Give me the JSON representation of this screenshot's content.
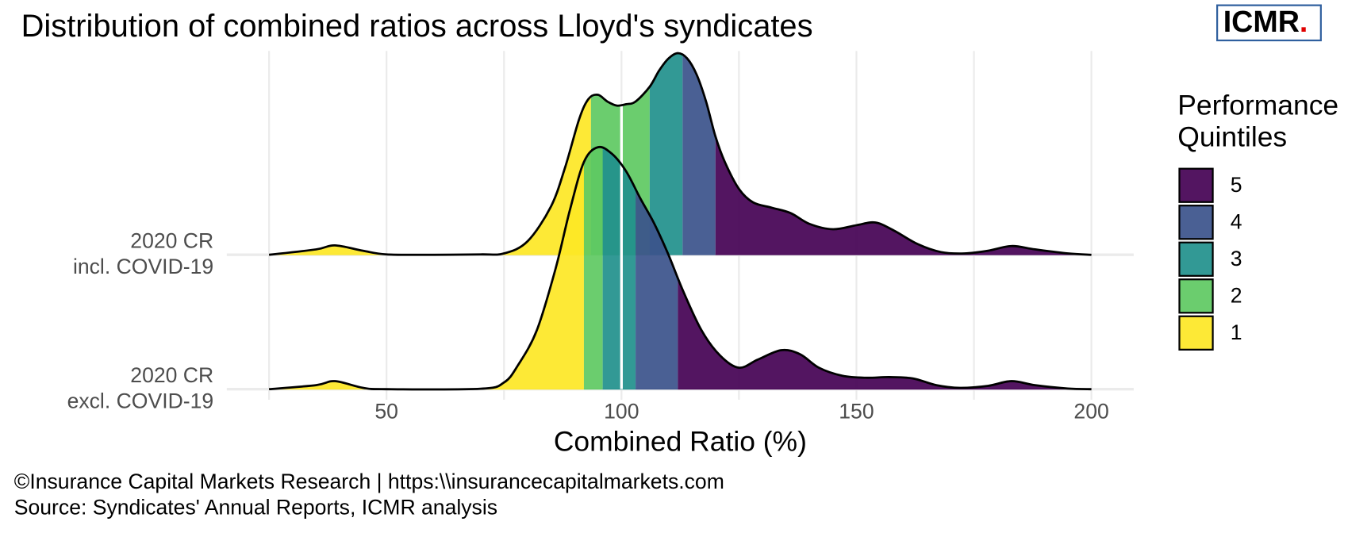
{
  "chart_data": {
    "type": "ridgeline",
    "title": "Distribution of combined ratios across Lloyd's syndicates",
    "x_label": "Combined Ratio (%)",
    "xlim": [
      16,
      209
    ],
    "xticks": [
      50,
      100,
      150,
      200
    ],
    "x_minor_ticks": [
      25,
      75,
      125,
      175
    ],
    "grid": true,
    "reference_line": 100,
    "legend": {
      "title": [
        "Performance",
        "Quintiles"
      ],
      "position": "right",
      "names": [
        "5",
        "4",
        "3",
        "2",
        "1"
      ]
    },
    "quintile_colors": [
      "#fde725",
      "#5ec962",
      "#21908c",
      "#3b528b",
      "#440154"
    ],
    "series": [
      {
        "label": [
          "2020 CR",
          "incl. COVID-19"
        ],
        "quintile_breaks": [
          93.5,
          106,
          113,
          120
        ],
        "x": [
          25,
          35,
          39,
          45,
          50,
          60,
          70,
          75,
          80,
          85,
          88,
          91,
          93,
          95,
          97,
          99,
          101,
          103,
          106,
          108,
          110,
          112,
          114,
          116,
          118,
          120,
          122,
          125,
          128,
          132,
          136,
          140,
          145,
          150,
          154,
          158,
          163,
          168,
          173,
          178,
          183,
          188,
          195,
          200
        ],
        "values": [
          0,
          0.04,
          0.07,
          0.03,
          0.003,
          0,
          0.003,
          0.01,
          0.1,
          0.36,
          0.65,
          1.01,
          1.16,
          1.19,
          1.14,
          1.11,
          1.12,
          1.14,
          1.25,
          1.37,
          1.46,
          1.5,
          1.46,
          1.34,
          1.14,
          0.88,
          0.69,
          0.49,
          0.39,
          0.35,
          0.31,
          0.23,
          0.19,
          0.22,
          0.24,
          0.18,
          0.08,
          0.02,
          0.01,
          0.03,
          0.065,
          0.04,
          0.01,
          0
        ]
      },
      {
        "label": [
          "2020 CR",
          "excl. COVID-19"
        ],
        "quintile_breaks": [
          92,
          96,
          103,
          112
        ],
        "x": [
          25,
          35,
          39,
          45,
          50,
          70,
          75,
          78,
          82,
          86,
          89,
          92,
          95,
          98,
          101,
          104,
          107,
          110,
          113,
          117,
          121,
          125,
          129,
          134,
          138,
          142,
          147,
          152,
          157,
          162,
          167,
          172,
          178,
          183,
          188,
          195,
          200
        ],
        "values": [
          0,
          0.03,
          0.06,
          0.01,
          0,
          0.003,
          0.05,
          0.18,
          0.44,
          0.9,
          1.33,
          1.69,
          1.8,
          1.75,
          1.62,
          1.42,
          1.23,
          1.0,
          0.74,
          0.44,
          0.25,
          0.16,
          0.22,
          0.29,
          0.26,
          0.16,
          0.1,
          0.085,
          0.09,
          0.08,
          0.03,
          0.01,
          0.025,
          0.06,
          0.03,
          0.005,
          0
        ]
      }
    ]
  },
  "logo": {
    "text": "ICMR",
    "dot": "."
  },
  "footer": [
    "©Insurance Capital Markets Research | https:\\\\insurancecapitalmarkets.com",
    "Source: Syndicates' Annual Reports, ICMR analysis"
  ]
}
